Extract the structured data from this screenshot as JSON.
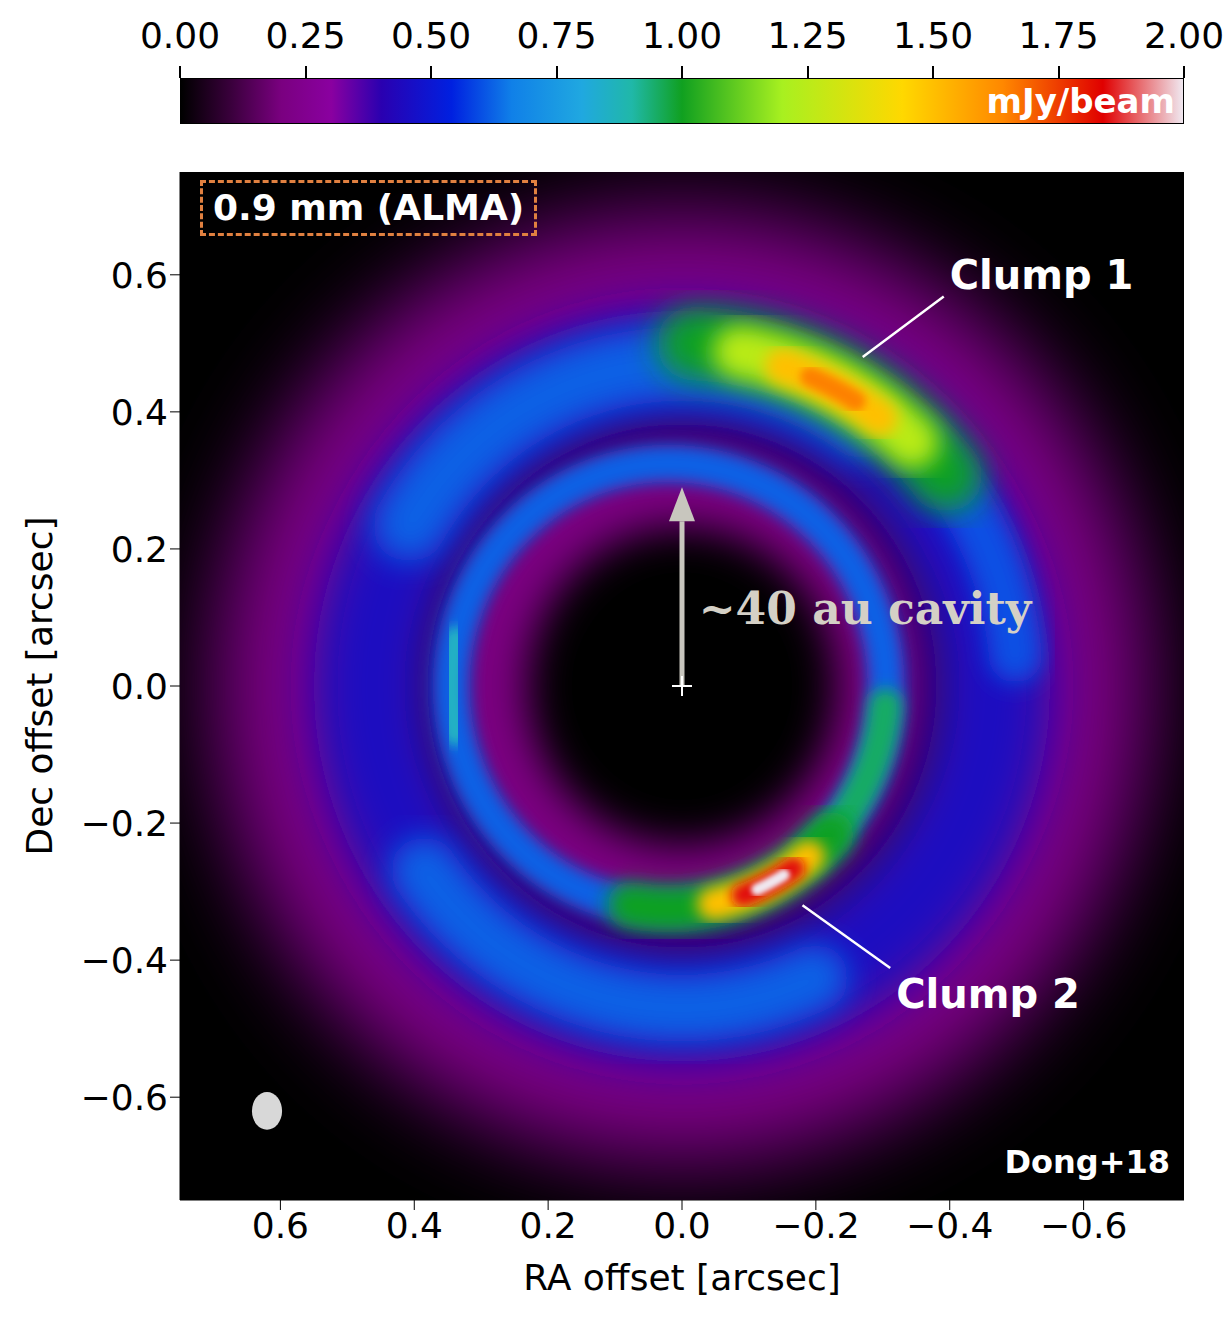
{
  "chart_data": {
    "type": "image",
    "title": "0.9 mm (ALMA)",
    "credit": "Dong+18",
    "xlabel": "RA offset [arcsec]",
    "ylabel": "Dec offset [arcsec]",
    "xlim": [
      0.75,
      -0.75
    ],
    "ylim": [
      -0.75,
      0.75
    ],
    "xticks": [
      0.6,
      0.4,
      0.2,
      {
        "value": 0,
        "label": "0.0"
      },
      {
        "value": -0.2,
        "label": "−0.2"
      },
      {
        "value": -0.4,
        "label": "−0.4"
      },
      {
        "value": -0.6,
        "label": "−0.6"
      }
    ],
    "yticks": [
      {
        "value": -0.6,
        "label": "−0.6"
      },
      {
        "value": -0.4,
        "label": "−0.4"
      },
      {
        "value": -0.2,
        "label": "−0.2"
      },
      {
        "value": 0,
        "label": "0.0"
      },
      0.2,
      0.4,
      0.6
    ],
    "colorbar": {
      "label": "mJy/beam",
      "lim": [
        0,
        2
      ],
      "ticks": [
        {
          "value": 0,
          "label": "0.00"
        },
        {
          "value": 0.25,
          "label": "0.25"
        },
        {
          "value": 0.5,
          "label": "0.50"
        },
        {
          "value": 0.75,
          "label": "0.75"
        },
        {
          "value": 1,
          "label": "1.00"
        },
        {
          "value": 1.25,
          "label": "1.25"
        },
        {
          "value": 1.5,
          "label": "1.50"
        },
        {
          "value": 1.75,
          "label": "1.75"
        },
        {
          "value": 2,
          "label": "2.00"
        }
      ]
    },
    "components": [
      {
        "kind": "ring",
        "x": 0,
        "y": 0,
        "r": 0.55,
        "width": 0.3,
        "value": 0.22
      },
      {
        "kind": "ring",
        "x": 0,
        "y": 0,
        "r": 0.3,
        "width": 0.14,
        "value": 0.2
      },
      {
        "kind": "ring",
        "x": 0,
        "y": 0,
        "r": 0.465,
        "width": 0.17,
        "value": 0.45
      },
      {
        "kind": "arc",
        "x": 0,
        "y": 0,
        "r": 0.47,
        "width": 0.11,
        "from": 30,
        "to": 125,
        "value": 0.62
      },
      {
        "kind": "arc",
        "x": 0,
        "y": 0,
        "r": 0.47,
        "width": 0.1,
        "from": 245,
        "to": 325,
        "value": 0.62
      },
      {
        "kind": "arc",
        "x": 0,
        "y": 0,
        "r": 0.5,
        "width": 0.08,
        "from": 135,
        "to": 175,
        "value": 0.6
      },
      {
        "kind": "ring",
        "x": 0.02,
        "y": 0,
        "r": 0.325,
        "width": 0.055,
        "value": 0.62
      },
      {
        "kind": "arc",
        "x": 0.02,
        "y": 0,
        "r": 0.325,
        "width": 0.05,
        "from": 185,
        "to": 230,
        "value": 0.95
      },
      {
        "kind": "arc",
        "x": 0.02,
        "y": 0,
        "r": 0.325,
        "width": 0.04,
        "from": -12,
        "to": 12,
        "value": 0.85
      },
      {
        "kind": "arc",
        "x": 0,
        "y": 0,
        "r": 0.5,
        "width": 0.11,
        "from": 92,
        "to": 142,
        "value": 1.0
      },
      {
        "kind": "arc",
        "x": 0,
        "y": 0,
        "r": 0.495,
        "width": 0.08,
        "from": 100,
        "to": 134,
        "value": 1.25
      },
      {
        "kind": "arc",
        "x": 0,
        "y": 0,
        "r": 0.49,
        "width": 0.055,
        "from": 108,
        "to": 127,
        "value": 1.5
      },
      {
        "kind": "arc",
        "x": 0,
        "y": 0,
        "r": 0.49,
        "width": 0.03,
        "from": 113,
        "to": 122,
        "value": 1.65
      },
      {
        "kind": "arc",
        "x": 0.02,
        "y": 0,
        "r": 0.325,
        "width": 0.07,
        "from": 222,
        "to": 280,
        "value": 1.0
      },
      {
        "kind": "arc",
        "x": 0.02,
        "y": 0,
        "r": 0.325,
        "width": 0.05,
        "from": 230,
        "to": 258,
        "value": 1.5
      },
      {
        "kind": "arc",
        "x": 0.02,
        "y": 0,
        "r": 0.325,
        "width": 0.035,
        "from": 235,
        "to": 250,
        "value": 1.85
      },
      {
        "kind": "arc",
        "x": 0.02,
        "y": 0,
        "r": 0.325,
        "width": 0.018,
        "from": 238,
        "to": 246,
        "value": 2.0
      }
    ],
    "beam": {
      "x": 0.62,
      "y": -0.62,
      "width": 0.045,
      "height": 0.055
    },
    "annotations": [
      {
        "text": "Clump 1",
        "x": -0.4,
        "y": 0.58,
        "point": [
          -0.27,
          0.48
        ]
      },
      {
        "text": "Clump 2",
        "x": -0.32,
        "y": -0.47,
        "point": [
          -0.18,
          -0.32
        ]
      },
      {
        "text": "~40 au cavity",
        "x": -0.025,
        "y": 0.09,
        "arrow": [
          [
            0,
            0
          ],
          [
            0,
            0.29
          ]
        ]
      }
    ]
  }
}
